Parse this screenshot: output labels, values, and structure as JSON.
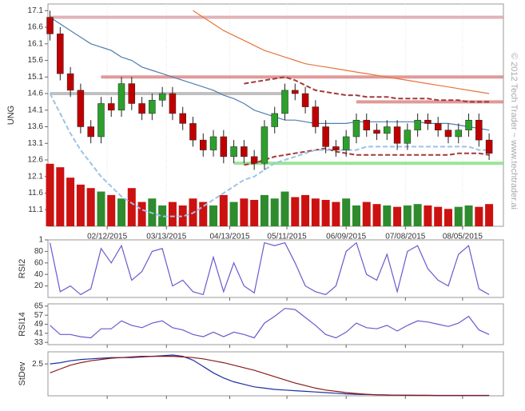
{
  "chart_data": [
    {
      "type": "candlestick",
      "ylabel": "UNG",
      "watermark": "© 2012 Tech Trader ~ www.techtrader.ai",
      "x": [
        14,
        19,
        24,
        29,
        34,
        39,
        44,
        49,
        54,
        59,
        64,
        69,
        74,
        79,
        84,
        89,
        94,
        99,
        104,
        109,
        114,
        119,
        124,
        129,
        134,
        139,
        144,
        149,
        154,
        159,
        164,
        169,
        174,
        179,
        184,
        189,
        194,
        199,
        204,
        209,
        214,
        219,
        224,
        229
      ],
      "open": [
        16.9,
        16.4,
        15.2,
        14.7,
        13.6,
        13.3,
        14.3,
        14.1,
        14.9,
        14.3,
        14.0,
        14.4,
        14.6,
        14.0,
        13.7,
        13.2,
        12.9,
        13.3,
        12.7,
        13.0,
        12.7,
        12.5,
        13.6,
        14.0,
        14.7,
        14.6,
        14.2,
        13.6,
        13.0,
        12.9,
        13.3,
        13.8,
        13.5,
        13.4,
        13.6,
        13.1,
        13.5,
        13.8,
        13.7,
        13.5,
        13.3,
        13.5,
        13.8,
        13.2
      ],
      "high": [
        17.1,
        16.6,
        15.4,
        14.9,
        13.8,
        14.5,
        14.5,
        15.1,
        15.1,
        14.5,
        14.6,
        14.8,
        14.8,
        14.2,
        13.9,
        13.4,
        13.5,
        13.5,
        13.2,
        13.2,
        12.9,
        13.8,
        14.2,
        14.9,
        14.9,
        14.8,
        14.4,
        13.8,
        13.2,
        13.5,
        14.0,
        14.0,
        13.7,
        13.8,
        13.8,
        13.7,
        14.0,
        14.0,
        13.9,
        13.7,
        13.7,
        14.0,
        14.0,
        13.4
      ],
      "low": [
        16.2,
        15.0,
        14.5,
        13.4,
        13.1,
        13.1,
        13.9,
        13.9,
        14.1,
        13.8,
        13.8,
        14.2,
        13.8,
        13.5,
        13.0,
        12.7,
        12.7,
        12.5,
        12.5,
        12.5,
        12.3,
        12.3,
        13.4,
        13.8,
        14.4,
        14.0,
        13.4,
        12.8,
        12.7,
        12.7,
        13.1,
        13.3,
        13.2,
        13.2,
        12.9,
        12.9,
        13.3,
        13.5,
        13.3,
        13.1,
        13.1,
        13.3,
        13.0,
        12.6
      ],
      "close": [
        16.4,
        15.2,
        14.7,
        13.6,
        13.3,
        14.3,
        14.1,
        14.9,
        14.3,
        14.0,
        14.4,
        14.6,
        14.0,
        13.7,
        13.2,
        12.9,
        13.3,
        12.7,
        13.0,
        12.7,
        12.5,
        13.6,
        14.0,
        14.7,
        14.6,
        14.2,
        13.6,
        13.0,
        12.9,
        13.3,
        13.8,
        13.5,
        13.4,
        13.6,
        13.1,
        13.5,
        13.8,
        13.7,
        13.5,
        13.3,
        13.5,
        13.8,
        13.2,
        12.8
      ],
      "up_color": "#2ca02c",
      "down_color": "#c00000",
      "volume": {
        "color_up": "#2e8b2e",
        "color_down": "#cc1111",
        "values": [
          90,
          85,
          70,
          60,
          55,
          50,
          45,
          40,
          55,
          35,
          40,
          30,
          35,
          30,
          40,
          35,
          30,
          45,
          35,
          40,
          38,
          45,
          40,
          50,
          42,
          45,
          40,
          38,
          35,
          40,
          30,
          35,
          32,
          30,
          28,
          30,
          32,
          30,
          28,
          25,
          28,
          30,
          28,
          32
        ]
      },
      "y2lim": [
        0,
        320
      ],
      "series": [
        {
          "color": "#4f7fb0",
          "dashed": false,
          "values": [
            16.9,
            16.7,
            16.5,
            16.3,
            16.1,
            16.0,
            15.9,
            15.7,
            15.6,
            15.4,
            15.3,
            15.2,
            15.1,
            15.0,
            14.9,
            14.8,
            14.7,
            14.55,
            14.45,
            14.3,
            14.1,
            14.0,
            13.9,
            13.8,
            13.8,
            13.75,
            13.7,
            13.7,
            13.7,
            13.7,
            13.75,
            13.75,
            13.75,
            13.75,
            13.75,
            13.75,
            13.75,
            13.7,
            13.7,
            13.7,
            13.65,
            13.6,
            13.55,
            13.5
          ]
        },
        {
          "color": "#e8743b",
          "dashed": false,
          "values": [
            null,
            null,
            null,
            null,
            null,
            null,
            null,
            null,
            null,
            null,
            null,
            null,
            null,
            null,
            17.1,
            16.9,
            16.7,
            16.5,
            16.35,
            16.2,
            16.05,
            15.9,
            15.8,
            15.7,
            15.6,
            15.5,
            15.45,
            15.4,
            15.35,
            15.3,
            15.25,
            15.2,
            15.15,
            15.1,
            15.05,
            15.0,
            14.95,
            14.9,
            14.85,
            14.8,
            14.75,
            14.7,
            14.65,
            14.6
          ]
        },
        {
          "color": "#a33a3a",
          "dashed": true,
          "values": [
            null,
            null,
            null,
            null,
            null,
            null,
            null,
            null,
            null,
            null,
            null,
            null,
            null,
            null,
            null,
            null,
            null,
            null,
            null,
            14.9,
            14.95,
            15.0,
            15.05,
            15.1,
            15.0,
            14.85,
            14.7,
            14.65,
            14.6,
            14.55,
            14.55,
            14.5,
            14.5,
            14.5,
            14.45,
            14.45,
            14.45,
            14.45,
            14.4,
            14.4,
            14.4,
            14.35,
            14.35,
            14.35
          ]
        },
        {
          "color": "#a33a3a",
          "dashed": true,
          "values": [
            null,
            null,
            null,
            null,
            null,
            null,
            null,
            null,
            null,
            null,
            null,
            null,
            null,
            null,
            null,
            null,
            null,
            null,
            null,
            12.45,
            12.5,
            12.6,
            12.7,
            12.75,
            12.8,
            12.85,
            12.9,
            12.95,
            12.85,
            12.8,
            12.75,
            12.75,
            12.75,
            12.75,
            12.75,
            12.75,
            12.75,
            12.75,
            12.75,
            12.75,
            12.8,
            12.8,
            12.8,
            12.75
          ]
        },
        {
          "color": "#9cc3e6",
          "dashed": true,
          "values": [
            14.6,
            14.0,
            13.4,
            12.9,
            12.5,
            12.1,
            11.8,
            11.5,
            11.3,
            11.1,
            11.0,
            10.9,
            10.9,
            10.9,
            11.0,
            11.2,
            11.4,
            11.6,
            11.8,
            12.0,
            12.1,
            12.3,
            12.5,
            12.6,
            12.7,
            12.8,
            12.9,
            12.9,
            12.9,
            12.9,
            12.9,
            13.0,
            13.0,
            13.0,
            13.0,
            13.0,
            13.0,
            13.0,
            13.0,
            13.0,
            13.0,
            13.0,
            12.9,
            12.9
          ]
        }
      ],
      "levels": [
        {
          "value": 16.9,
          "color": "#d9a0a8",
          "from": 14,
          "to": 236
        },
        {
          "value": 15.1,
          "color": "#d98080",
          "from": 39,
          "to": 236
        },
        {
          "value": 14.6,
          "color": "#b0b0b0",
          "from": 14,
          "to": 129
        },
        {
          "value": 14.35,
          "color": "#d98080",
          "from": 164,
          "to": 236
        },
        {
          "value": 12.5,
          "color": "#80e080",
          "from": 104,
          "to": 236
        }
      ],
      "xlim": [
        13,
        236
      ],
      "xticks": [
        {
          "value": 42,
          "label": "02/12/2015"
        },
        {
          "value": 71,
          "label": "03/13/2015"
        },
        {
          "value": 102,
          "label": "04/13/2015"
        },
        {
          "value": 130,
          "label": "05/11/2015"
        },
        {
          "value": 159,
          "label": "06/09/2015"
        },
        {
          "value": 188,
          "label": "07/08/2015"
        },
        {
          "value": 216,
          "label": "08/05/2015"
        }
      ],
      "ylim": [
        10.6,
        17.3
      ],
      "yticks": [
        17.1,
        16.6,
        16.1,
        15.6,
        15.1,
        14.6,
        14.1,
        13.6,
        13.1,
        12.6,
        12.1,
        11.6,
        11.1
      ]
    },
    {
      "type": "line",
      "ylabel": "RSI2",
      "x": [
        14,
        19,
        24,
        29,
        34,
        39,
        44,
        49,
        54,
        59,
        64,
        69,
        74,
        79,
        84,
        89,
        94,
        99,
        104,
        109,
        114,
        119,
        124,
        129,
        134,
        139,
        144,
        149,
        154,
        159,
        164,
        169,
        174,
        179,
        184,
        189,
        194,
        199,
        204,
        209,
        214,
        219,
        224,
        229
      ],
      "series": [
        {
          "color": "#6a5acd",
          "dashed": false,
          "values": [
            95,
            10,
            20,
            5,
            15,
            85,
            60,
            90,
            30,
            45,
            80,
            85,
            20,
            30,
            10,
            5,
            70,
            10,
            60,
            20,
            8,
            95,
            90,
            95,
            60,
            20,
            10,
            5,
            20,
            80,
            95,
            40,
            30,
            75,
            10,
            80,
            90,
            50,
            30,
            20,
            75,
            90,
            15,
            5
          ]
        }
      ],
      "ylim": [
        0,
        100
      ],
      "yticks": [
        {
          "value": 100,
          "label": "1"
        },
        80,
        60,
        40,
        20
      ]
    },
    {
      "type": "line",
      "ylabel": "RSI14",
      "x": [
        14,
        19,
        24,
        29,
        34,
        39,
        44,
        49,
        54,
        59,
        64,
        69,
        74,
        79,
        84,
        89,
        94,
        99,
        104,
        109,
        114,
        119,
        124,
        129,
        134,
        139,
        144,
        149,
        154,
        159,
        164,
        169,
        174,
        179,
        184,
        189,
        194,
        199,
        204,
        209,
        214,
        219,
        224,
        229
      ],
      "series": [
        {
          "color": "#6a5acd",
          "dashed": false,
          "values": [
            48,
            40,
            40,
            38,
            37,
            45,
            45,
            52,
            48,
            46,
            50,
            52,
            46,
            44,
            40,
            38,
            42,
            38,
            42,
            40,
            37,
            50,
            56,
            63,
            62,
            55,
            48,
            40,
            37,
            42,
            50,
            46,
            45,
            48,
            43,
            48,
            52,
            51,
            49,
            47,
            50,
            56,
            44,
            40
          ]
        }
      ],
      "ylim": [
        31,
        67
      ],
      "yticks": [
        65,
        57,
        49,
        41,
        33
      ]
    },
    {
      "type": "line",
      "ylabel": "StDev",
      "x": [
        14,
        19,
        24,
        29,
        34,
        39,
        44,
        49,
        54,
        59,
        64,
        69,
        74,
        79,
        84,
        89,
        94,
        99,
        104,
        109,
        114,
        119,
        124,
        129,
        134,
        139,
        144,
        149,
        154,
        159,
        164,
        169,
        174,
        179,
        184,
        189,
        194,
        199,
        204,
        209,
        214,
        219,
        224,
        229
      ],
      "series": [
        {
          "color": "#1f2f9f",
          "dashed": false,
          "values": [
            2.5,
            2.6,
            2.75,
            2.85,
            2.9,
            2.95,
            3.0,
            3.0,
            3.0,
            3.05,
            3.1,
            3.15,
            3.2,
            3.1,
            2.8,
            2.3,
            1.8,
            1.4,
            1.1,
            0.9,
            0.7,
            0.6,
            0.5,
            0.45,
            0.4,
            0.35,
            0.3,
            0.25,
            0.2,
            0.15,
            0.12,
            0.1,
            0.08,
            0.06,
            0.05,
            0.05,
            0.04,
            0.04,
            0.03,
            0.03,
            0.03,
            0.03,
            0.03,
            0.03
          ]
        },
        {
          "color": "#8b1a1a",
          "dashed": false,
          "values": [
            1.8,
            2.1,
            2.4,
            2.6,
            2.75,
            2.85,
            2.95,
            3.0,
            3.05,
            3.1,
            3.1,
            3.1,
            3.1,
            3.05,
            3.0,
            2.9,
            2.75,
            2.6,
            2.4,
            2.2,
            2.0,
            1.75,
            1.5,
            1.25,
            1.0,
            0.8,
            0.6,
            0.45,
            0.35,
            0.25,
            0.18,
            0.12,
            0.08,
            0.06,
            0.05,
            0.04,
            0.03,
            0.03,
            0.02,
            0.02,
            0.02,
            0.02,
            0.02,
            0.02
          ]
        }
      ],
      "ylim": [
        0,
        3.45
      ],
      "yticks": [
        2.5
      ]
    }
  ]
}
